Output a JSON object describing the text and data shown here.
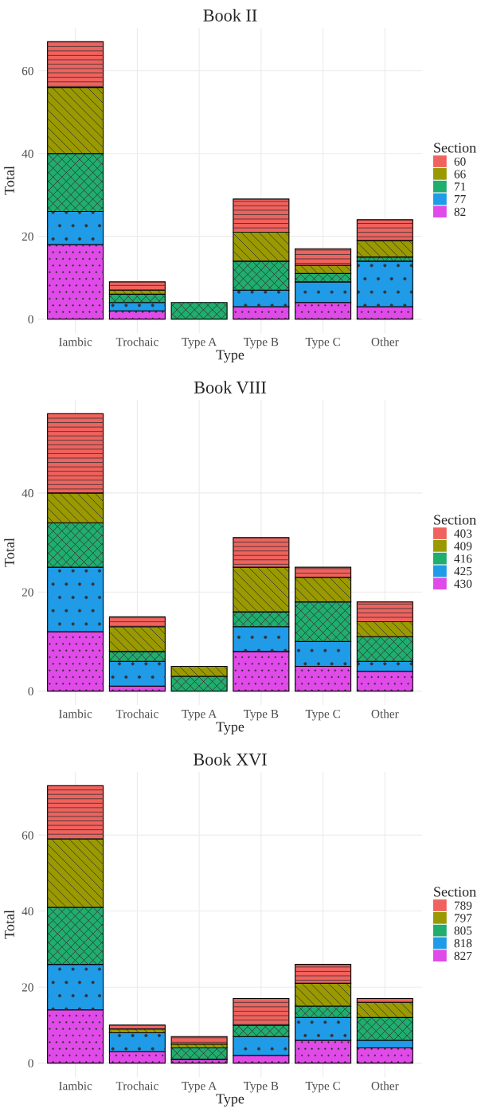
{
  "chart_data": [
    {
      "type": "bar",
      "title": "Book II",
      "xlabel": "Type",
      "ylabel": "Total",
      "legend_title": "Section",
      "stacked": true,
      "legend": "right",
      "grid": true,
      "categories": [
        "Iambic",
        "Trochaic",
        "Type A",
        "Type B",
        "Type C",
        "Other"
      ],
      "ylim": [
        -3.35,
        70.35
      ],
      "yticks": [
        0,
        20,
        40,
        60
      ],
      "series": [
        {
          "name": "82",
          "color": "#e04ae8",
          "values": [
            18,
            2,
            0,
            3,
            4,
            3
          ]
        },
        {
          "name": "77",
          "color": "#1f9be8",
          "values": [
            8,
            2,
            0,
            4,
            5,
            11
          ]
        },
        {
          "name": "71",
          "color": "#1fae6e",
          "values": [
            14,
            2,
            4,
            7,
            2,
            1
          ]
        },
        {
          "name": "66",
          "color": "#9a9a00",
          "values": [
            16,
            1,
            0,
            7,
            2,
            4
          ]
        },
        {
          "name": "60",
          "color": "#f0625d",
          "values": [
            11,
            2,
            0,
            8,
            4,
            5
          ]
        }
      ]
    },
    {
      "type": "bar",
      "title": "Book VIII",
      "xlabel": "Type",
      "ylabel": "Total",
      "legend_title": "Section",
      "stacked": true,
      "legend": "right",
      "grid": true,
      "categories": [
        "Iambic",
        "Trochaic",
        "Type A",
        "Type B",
        "Type C",
        "Other"
      ],
      "ylim": [
        -2.8,
        58.8
      ],
      "yticks": [
        0,
        20,
        40
      ],
      "series": [
        {
          "name": "430",
          "color": "#e04ae8",
          "values": [
            12,
            1,
            0,
            8,
            5,
            4
          ]
        },
        {
          "name": "425",
          "color": "#1f9be8",
          "values": [
            13,
            5,
            0,
            5,
            5,
            2
          ]
        },
        {
          "name": "416",
          "color": "#1fae6e",
          "values": [
            9,
            2,
            3,
            3,
            8,
            5
          ]
        },
        {
          "name": "409",
          "color": "#9a9a00",
          "values": [
            6,
            5,
            2,
            9,
            5,
            3
          ]
        },
        {
          "name": "403",
          "color": "#f0625d",
          "values": [
            16,
            2,
            0,
            6,
            2,
            4
          ]
        }
      ]
    },
    {
      "type": "bar",
      "title": "Book XVI",
      "xlabel": "Type",
      "ylabel": "Total",
      "legend_title": "Section",
      "stacked": true,
      "legend": "right",
      "grid": true,
      "categories": [
        "Iambic",
        "Trochaic",
        "Type A",
        "Type B",
        "Type C",
        "Other"
      ],
      "ylim": [
        -3.65,
        76.65
      ],
      "yticks": [
        0,
        20,
        40,
        60
      ],
      "series": [
        {
          "name": "827",
          "color": "#e04ae8",
          "values": [
            14,
            3,
            1,
            2,
            6,
            4
          ]
        },
        {
          "name": "818",
          "color": "#1f9be8",
          "values": [
            12,
            5,
            0,
            5,
            6,
            2
          ]
        },
        {
          "name": "805",
          "color": "#1fae6e",
          "values": [
            15,
            0,
            3,
            3,
            3,
            6
          ]
        },
        {
          "name": "797",
          "color": "#9a9a00",
          "values": [
            18,
            1,
            1,
            0,
            6,
            4
          ]
        },
        {
          "name": "789",
          "color": "#f0625d",
          "values": [
            14,
            1,
            2,
            7,
            5,
            1
          ]
        }
      ]
    }
  ]
}
